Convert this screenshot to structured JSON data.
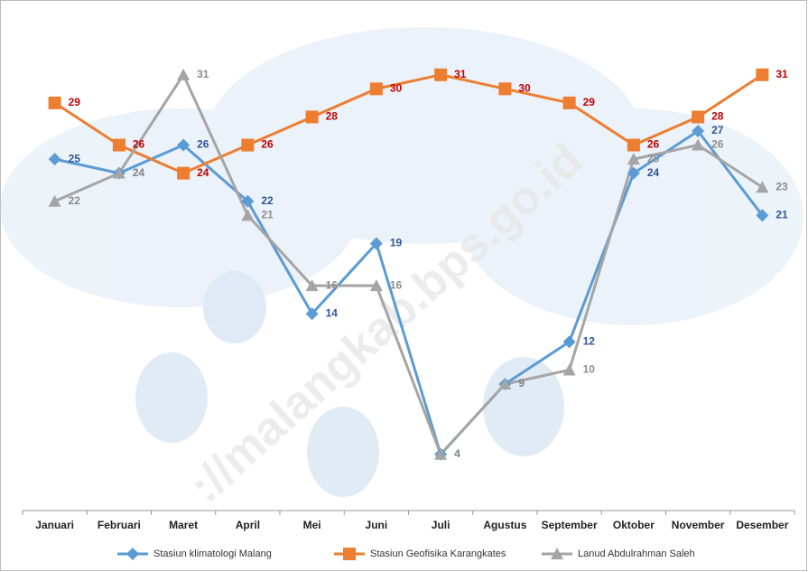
{
  "chart_data": {
    "type": "line",
    "watermark": "://malangkab.bps.go.id",
    "categories": [
      "Januari",
      "Februari",
      "Maret",
      "April",
      "Mei",
      "Juni",
      "Juli",
      "Agustus",
      "September",
      "Oktober",
      "November",
      "Desember"
    ],
    "series": [
      {
        "name": "Stasiun klimatologi Malang",
        "color": "#5b9bd5",
        "label_color": "#2f5597",
        "marker": "diamond",
        "values": [
          25,
          24,
          26,
          22,
          14,
          19,
          4,
          9,
          12,
          24,
          27,
          21
        ]
      },
      {
        "name": "Stasiun Geofisika Karangkates",
        "color": "#ed7d31",
        "label_color": "#c00000",
        "marker": "square",
        "values": [
          29,
          26,
          24,
          26,
          28,
          30,
          31,
          30,
          29,
          26,
          28,
          31
        ]
      },
      {
        "name": "Lanud Abdulrahman Saleh",
        "color": "#a5a5a5",
        "label_color": "#8c8c8c",
        "marker": "triangle",
        "values": [
          22,
          24,
          31,
          21,
          16,
          16,
          4,
          9,
          10,
          25,
          26,
          23
        ]
      }
    ],
    "ylim": [
      0,
      36
    ]
  }
}
